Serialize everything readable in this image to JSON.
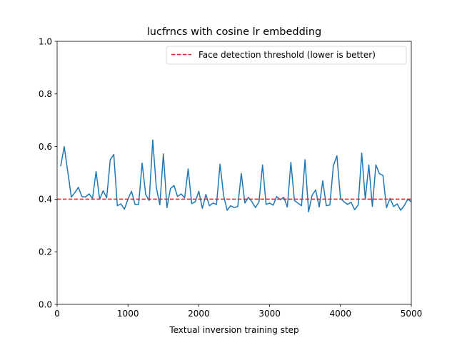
{
  "chart_data": {
    "type": "line",
    "title": "lucfrncs with cosine lr embedding",
    "xlabel": "Textual inversion training step",
    "ylabel": "",
    "xlim": [
      0,
      5000
    ],
    "ylim": [
      0,
      1
    ],
    "x_ticks": [
      0,
      1000,
      2000,
      3000,
      4000,
      5000
    ],
    "x_tick_labels": [
      "0",
      "1000",
      "2000",
      "3000",
      "4000",
      "5000"
    ],
    "y_ticks": [
      0,
      0.2,
      0.4,
      0.6,
      0.8,
      1.0
    ],
    "y_tick_labels": [
      "0.0",
      "0.2",
      "0.4",
      "0.6",
      "0.8",
      "1.0"
    ],
    "grid": false,
    "legend_position": "upper-right",
    "series": [
      {
        "color": "#1f77b4",
        "style": "solid",
        "x": [
          50,
          100,
          150,
          200,
          250,
          300,
          350,
          400,
          450,
          500,
          550,
          600,
          650,
          700,
          750,
          800,
          850,
          900,
          950,
          1000,
          1050,
          1100,
          1150,
          1200,
          1250,
          1300,
          1350,
          1400,
          1450,
          1500,
          1550,
          1600,
          1650,
          1700,
          1750,
          1800,
          1850,
          1900,
          1950,
          2000,
          2050,
          2100,
          2150,
          2200,
          2250,
          2300,
          2350,
          2400,
          2450,
          2500,
          2550,
          2600,
          2650,
          2700,
          2750,
          2800,
          2850,
          2900,
          2950,
          3000,
          3050,
          3100,
          3150,
          3200,
          3250,
          3300,
          3350,
          3400,
          3450,
          3500,
          3550,
          3600,
          3650,
          3700,
          3750,
          3800,
          3850,
          3900,
          3950,
          4000,
          4050,
          4100,
          4150,
          4200,
          4250,
          4300,
          4350,
          4400,
          4450,
          4500,
          4550,
          4600,
          4650,
          4700,
          4750,
          4800,
          4850,
          4900,
          4950,
          5000
        ],
        "y": [
          0.525,
          0.6,
          0.505,
          0.408,
          0.425,
          0.445,
          0.41,
          0.408,
          0.42,
          0.403,
          0.505,
          0.4,
          0.432,
          0.405,
          0.55,
          0.57,
          0.375,
          0.382,
          0.362,
          0.4,
          0.43,
          0.38,
          0.38,
          0.537,
          0.418,
          0.395,
          0.625,
          0.445,
          0.378,
          0.572,
          0.368,
          0.44,
          0.452,
          0.41,
          0.42,
          0.405,
          0.515,
          0.383,
          0.39,
          0.43,
          0.365,
          0.418,
          0.375,
          0.385,
          0.38,
          0.533,
          0.415,
          0.358,
          0.375,
          0.368,
          0.372,
          0.498,
          0.385,
          0.407,
          0.39,
          0.368,
          0.39,
          0.53,
          0.38,
          0.385,
          0.377,
          0.41,
          0.398,
          0.407,
          0.37,
          0.54,
          0.395,
          0.385,
          0.375,
          0.55,
          0.352,
          0.415,
          0.435,
          0.37,
          0.47,
          0.375,
          0.378,
          0.527,
          0.565,
          0.403,
          0.39,
          0.38,
          0.388,
          0.36,
          0.378,
          0.575,
          0.4,
          0.53,
          0.372,
          0.53,
          0.497,
          0.49,
          0.368,
          0.403,
          0.372,
          0.382,
          0.358,
          0.375,
          0.4,
          0.39
        ]
      },
      {
        "name": "Face detection threshold (lower is better)",
        "color": "#d62728",
        "style": "dashed",
        "x": [
          0,
          5000
        ],
        "y": [
          0.4,
          0.4
        ]
      }
    ]
  }
}
